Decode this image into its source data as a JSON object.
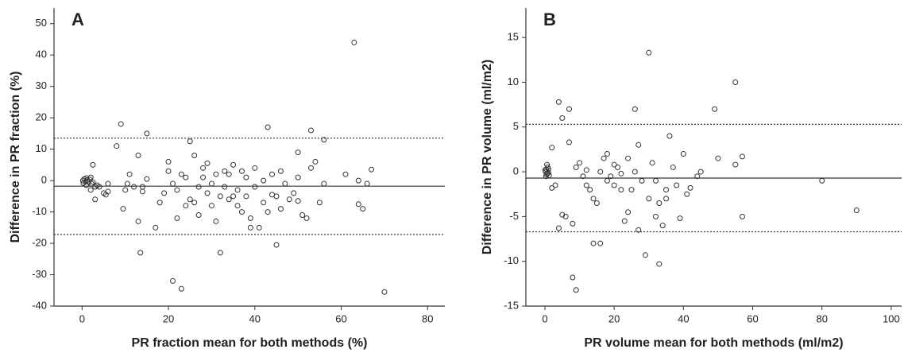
{
  "chart_data": [
    {
      "type": "scatter",
      "panel_label": "A",
      "x_label": "PR fraction mean for both methods (%)",
      "y_label": "Difference in PR fraction (%)",
      "xlim": [
        -6.5,
        84
      ],
      "ylim": [
        -40,
        55
      ],
      "xticks": [
        0,
        20,
        40,
        60,
        80
      ],
      "yticks": [
        -40,
        -30,
        -20,
        -10,
        0,
        10,
        20,
        30,
        40,
        50
      ],
      "color": "#333333",
      "reference_lines": [
        {
          "value": 13.5,
          "style": "dotted"
        },
        {
          "value": -1.8,
          "style": "solid"
        },
        {
          "value": -17.2,
          "style": "dotted"
        }
      ],
      "x": [
        0.2,
        0.5,
        0.8,
        1,
        1.2,
        1.5,
        1.8,
        2,
        2.2,
        2.5,
        3,
        3.5,
        0.3,
        1,
        2,
        2.5,
        3,
        4,
        5,
        5.5,
        6,
        6,
        8,
        9,
        9.5,
        10,
        10.5,
        11,
        12,
        13,
        13,
        13.5,
        14,
        14,
        15,
        15,
        17,
        18,
        19,
        20,
        20,
        21,
        21,
        22,
        22,
        23,
        23,
        24,
        24,
        25,
        25,
        26,
        26,
        27,
        27,
        28,
        28,
        29,
        29,
        30,
        30,
        31,
        31,
        32,
        32,
        33,
        33,
        34,
        34,
        35,
        35,
        36,
        36,
        37,
        37,
        38,
        38,
        39,
        39,
        40,
        40,
        41,
        42,
        42,
        43,
        43,
        44,
        44,
        45,
        45,
        46,
        46,
        47,
        48,
        49,
        50,
        50,
        50,
        51,
        52,
        53,
        53,
        54,
        55,
        56,
        56,
        61,
        63,
        64,
        65,
        66,
        67,
        70,
        64
      ],
      "values": [
        0,
        0.5,
        -0.3,
        0.8,
        0.2,
        -0.5,
        0.3,
        1,
        -1,
        -0.5,
        -2,
        -1.5,
        -0.8,
        -1.5,
        -3,
        5,
        -6,
        -2,
        -4,
        -4.5,
        -3.5,
        -1,
        11,
        18,
        -9,
        -3,
        -1,
        2,
        -2,
        8,
        -13,
        -23,
        -2,
        -3.5,
        15,
        0.5,
        -15,
        -7,
        -4,
        3,
        6,
        -32,
        -1,
        -12,
        -3,
        -34.5,
        2,
        1,
        -8,
        -6,
        12.5,
        8,
        -7,
        -11,
        -2,
        1,
        4,
        5.5,
        -4,
        -1,
        -8,
        -13,
        2,
        -23,
        -5,
        3,
        -2,
        -6,
        2,
        -5,
        5,
        -8,
        -3,
        -10,
        3,
        1,
        -5,
        -12,
        -15,
        4,
        -2,
        -15,
        0,
        -7,
        17,
        -10,
        -4.5,
        2,
        -5,
        -20.5,
        -9,
        3,
        -1,
        -6,
        -4,
        -6.5,
        9,
        1,
        -11,
        -12,
        16,
        4,
        6,
        -7,
        13,
        -1,
        2,
        44,
        -7.5,
        -9,
        -1,
        3.5,
        -35.5,
        0
      ]
    },
    {
      "type": "scatter",
      "panel_label": "B",
      "x_label": "PR volume mean for both methods (ml/m2)",
      "y_label": "Difference in PR volume (ml/m2)",
      "xlim": [
        -5.5,
        103
      ],
      "ylim": [
        -15,
        18.3
      ],
      "xticks": [
        0,
        20,
        40,
        60,
        80,
        100
      ],
      "yticks": [
        -15,
        -10,
        -5,
        0,
        5,
        10,
        15
      ],
      "color": "#333333",
      "reference_lines": [
        {
          "value": 5.3,
          "style": "dotted"
        },
        {
          "value": -0.7,
          "style": "solid"
        },
        {
          "value": -6.7,
          "style": "dotted"
        }
      ],
      "x": [
        0.2,
        0.4,
        0.5,
        0.8,
        1,
        0.3,
        0.6,
        1.2,
        0.1,
        0.7,
        1,
        2,
        2,
        3,
        4,
        4,
        5,
        5,
        6,
        7,
        7,
        8,
        8,
        9,
        9,
        10,
        11,
        12,
        13,
        14,
        14,
        15,
        16,
        16,
        17,
        18,
        18,
        19,
        20,
        21,
        22,
        23,
        24,
        24,
        25,
        26,
        26,
        27,
        27,
        28,
        29,
        30,
        30,
        31,
        32,
        32,
        33,
        33,
        34,
        35,
        36,
        37,
        38,
        39,
        40,
        41,
        42,
        44,
        45,
        49,
        50,
        55,
        55,
        57,
        57,
        80,
        90,
        12,
        20,
        35,
        22
      ],
      "values": [
        0,
        0.3,
        -0.3,
        0.5,
        -0.1,
        -0.5,
        0.8,
        -0.4,
        0.2,
        -0.2,
        0.3,
        2.7,
        -1.8,
        -1.5,
        7.8,
        -6.3,
        6,
        -4.8,
        -5,
        3.3,
        7,
        -5.8,
        -11.8,
        -13.2,
        0.5,
        1,
        -0.5,
        -1.5,
        -2,
        -3,
        -8,
        -3.5,
        -8,
        0,
        1.5,
        2,
        -1,
        -0.5,
        -1.5,
        0.5,
        -2,
        -5.5,
        -4.5,
        1.5,
        -2,
        7,
        0,
        3,
        -6.5,
        -1,
        -9.3,
        -3,
        13.3,
        1,
        -5,
        -1,
        -3.5,
        -10.3,
        -6,
        -2,
        4,
        0.5,
        -1.5,
        -5.2,
        2,
        -2.5,
        -1.8,
        -0.5,
        0,
        7,
        1.5,
        0.8,
        10,
        -5,
        1.7,
        -1,
        -4.3,
        0.2,
        0.8,
        -3,
        -0.2
      ]
    }
  ]
}
